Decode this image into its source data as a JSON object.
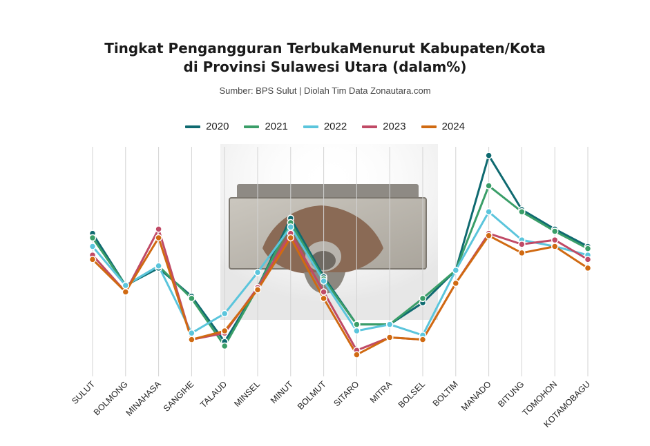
{
  "chart_data": {
    "type": "line",
    "title_line1": "Tingkat Pengangguran TerbukaMenurut Kabupaten/Kota",
    "title_line2": "di Provinsi Sulawesi Utara (dalam%)",
    "subtitle": "Sumber: BPS Sulut |  Diolah Tim Data Zonautara.com",
    "categories": [
      "SULUT",
      "BOLMONG",
      "MINAHASA",
      "SANGIHE",
      "TALAUD",
      "MINSEL",
      "MINUT",
      "BOLMUT",
      "SITARO",
      "MITRA",
      "BOLSEL",
      "BOLTIM",
      "MANADO",
      "BITUNG",
      "TOMOHON",
      "KOTAMOBAGU"
    ],
    "ylim": [
      0,
      10.6
    ],
    "grid": "vertical",
    "legend_position": "top-center",
    "series": [
      {
        "name": "2020",
        "color": "#0f6a70",
        "values": [
          6.6,
          4.2,
          5.0,
          3.7,
          1.6,
          4.1,
          7.3,
          4.6,
          2.4,
          2.4,
          3.4,
          4.9,
          10.2,
          7.7,
          6.8,
          6.0
        ]
      },
      {
        "name": "2021",
        "color": "#3a9e68",
        "values": [
          6.4,
          4.2,
          5.1,
          3.6,
          1.4,
          4.1,
          7.1,
          4.5,
          2.4,
          2.4,
          3.6,
          4.9,
          8.8,
          7.6,
          6.7,
          5.9
        ]
      },
      {
        "name": "2022",
        "color": "#5bc5dc",
        "values": [
          6.0,
          4.2,
          5.1,
          2.0,
          2.9,
          4.8,
          6.9,
          4.4,
          2.1,
          2.4,
          1.9,
          4.9,
          7.6,
          6.3,
          6.0,
          5.6
        ]
      },
      {
        "name": "2023",
        "color": "#c04a66",
        "values": [
          5.6,
          3.9,
          6.8,
          1.7,
          2.0,
          4.1,
          6.6,
          3.9,
          1.2,
          1.8,
          1.7,
          4.3,
          6.6,
          6.1,
          6.3,
          5.4
        ]
      },
      {
        "name": "2024",
        "color": "#d06a12",
        "values": [
          5.4,
          3.9,
          6.4,
          1.7,
          2.1,
          4.0,
          6.4,
          3.6,
          1.0,
          1.8,
          1.7,
          4.3,
          6.5,
          5.7,
          6.0,
          5.0
        ]
      }
    ]
  }
}
